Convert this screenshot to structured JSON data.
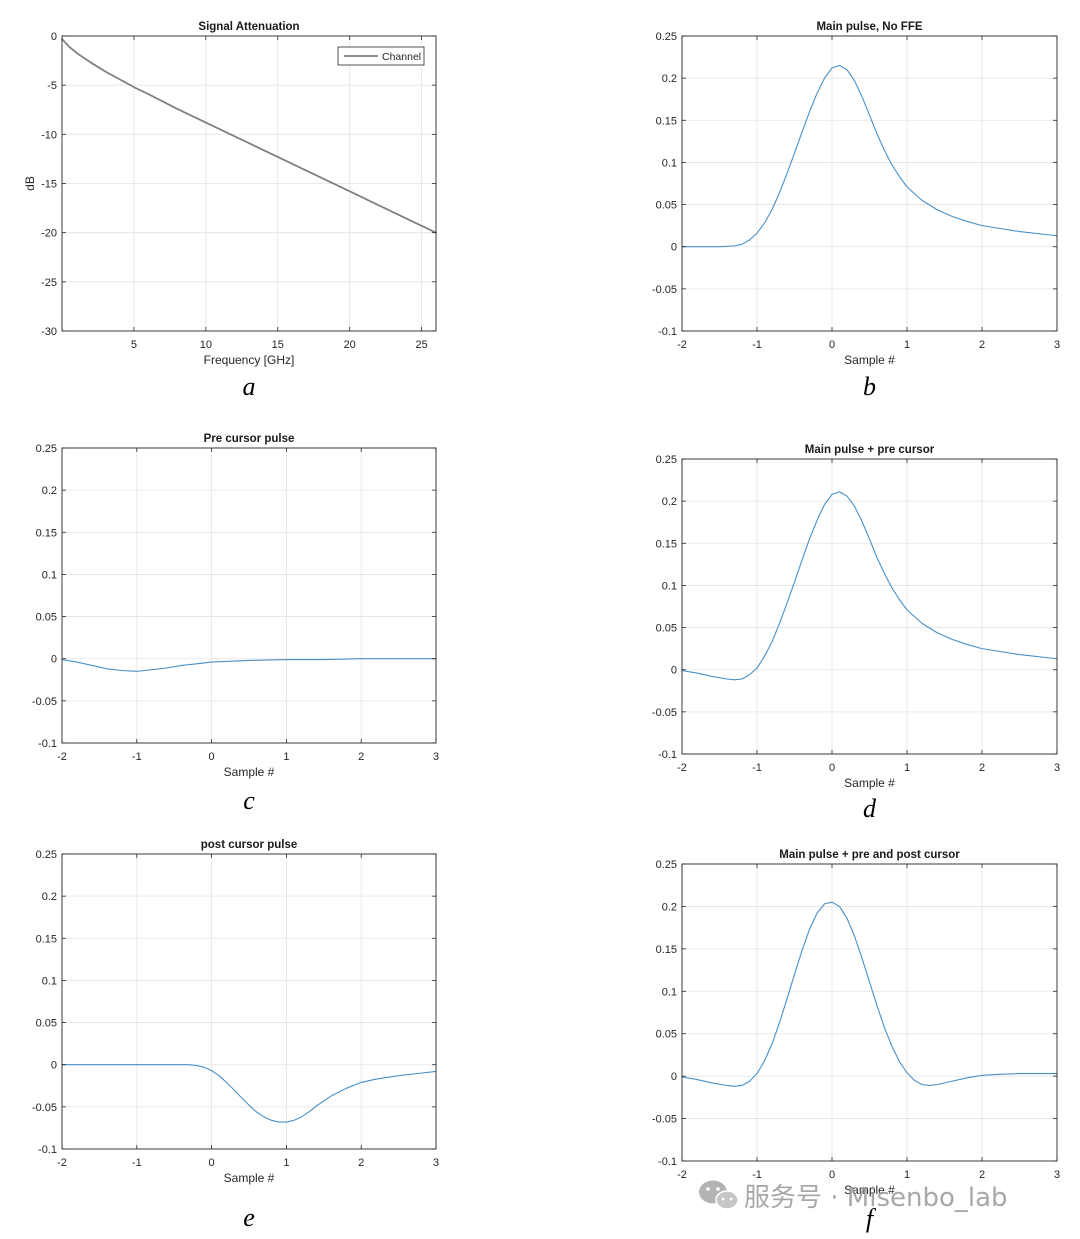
{
  "chart_data": [
    {
      "id": "a",
      "type": "line",
      "title": "Signal Attenuation",
      "xlabel": "Frequency [GHz]",
      "ylabel": "dB",
      "caption": "a",
      "xlim": [
        0,
        26
      ],
      "ylim": [
        -30,
        0
      ],
      "xticks": [
        5,
        10,
        15,
        20,
        25
      ],
      "yticks": [
        0,
        -5,
        -10,
        -15,
        -20,
        -25,
        -30
      ],
      "grid": true,
      "legend": "top-right",
      "series": [
        {
          "name": "Channel",
          "color": "#808080",
          "x": [
            0,
            0.5,
            1,
            1.5,
            2,
            3,
            4,
            5,
            6,
            8,
            10,
            12,
            14,
            16,
            18,
            20,
            22,
            24,
            26
          ],
          "y": [
            -0.3,
            -1.1,
            -1.7,
            -2.2,
            -2.7,
            -3.6,
            -4.4,
            -5.2,
            -5.9,
            -7.4,
            -8.8,
            -10.2,
            -11.6,
            -13.0,
            -14.4,
            -15.8,
            -17.2,
            -18.6,
            -20.0
          ]
        }
      ]
    },
    {
      "id": "b",
      "type": "line",
      "title": "Main pulse, No FFE",
      "xlabel": "Sample #",
      "ylabel": "",
      "caption": "b",
      "xlim": [
        -2,
        3
      ],
      "ylim": [
        -0.1,
        0.25
      ],
      "xticks": [
        -2,
        -1,
        0,
        1,
        2,
        3
      ],
      "yticks": [
        0.25,
        0.2,
        0.15,
        0.1,
        0.05,
        0,
        -0.05,
        -0.1
      ],
      "grid": true,
      "series": [
        {
          "color": "#4a90c8",
          "x": [
            -2,
            -1.5,
            -1.3,
            -1.2,
            -1.1,
            -1.0,
            -0.9,
            -0.8,
            -0.7,
            -0.6,
            -0.5,
            -0.4,
            -0.3,
            -0.2,
            -0.1,
            0,
            0.1,
            0.2,
            0.3,
            0.4,
            0.5,
            0.6,
            0.7,
            0.8,
            0.9,
            1.0,
            1.2,
            1.4,
            1.6,
            1.8,
            2.0,
            2.5,
            3.0
          ],
          "y": [
            0,
            0,
            0.001,
            0.003,
            0.008,
            0.016,
            0.028,
            0.044,
            0.064,
            0.087,
            0.111,
            0.136,
            0.16,
            0.182,
            0.2,
            0.212,
            0.215,
            0.21,
            0.197,
            0.178,
            0.156,
            0.134,
            0.114,
            0.097,
            0.083,
            0.071,
            0.055,
            0.044,
            0.036,
            0.03,
            0.025,
            0.018,
            0.013
          ]
        }
      ]
    },
    {
      "id": "c",
      "type": "line",
      "title": "Pre cursor pulse",
      "xlabel": "Sample #",
      "ylabel": "",
      "caption": "c",
      "xlim": [
        -2,
        3
      ],
      "ylim": [
        -0.1,
        0.25
      ],
      "xticks": [
        -2,
        -1,
        0,
        1,
        2,
        3
      ],
      "yticks": [
        0.25,
        0.2,
        0.15,
        0.1,
        0.05,
        0,
        -0.05,
        -0.1
      ],
      "grid": true,
      "series": [
        {
          "color": "#4a90c8",
          "x": [
            -2,
            -1.8,
            -1.6,
            -1.4,
            -1.2,
            -1.0,
            -0.8,
            -0.6,
            -0.4,
            -0.2,
            0,
            0.5,
            1.0,
            1.5,
            2.0,
            2.5,
            3.0
          ],
          "y": [
            -0.001,
            -0.004,
            -0.008,
            -0.012,
            -0.014,
            -0.015,
            -0.013,
            -0.011,
            -0.008,
            -0.006,
            -0.004,
            -0.002,
            -0.001,
            -0.001,
            0,
            0,
            0
          ]
        }
      ]
    },
    {
      "id": "d",
      "type": "line",
      "title": "Main pulse + pre cursor",
      "xlabel": "Sample #",
      "ylabel": "",
      "caption": "d",
      "xlim": [
        -2,
        3
      ],
      "ylim": [
        -0.1,
        0.25
      ],
      "xticks": [
        -2,
        -1,
        0,
        1,
        2,
        3
      ],
      "yticks": [
        0.25,
        0.2,
        0.15,
        0.1,
        0.05,
        0,
        -0.05,
        -0.1
      ],
      "grid": true,
      "series": [
        {
          "color": "#4a90c8",
          "x": [
            -2,
            -1.8,
            -1.6,
            -1.4,
            -1.3,
            -1.2,
            -1.1,
            -1.0,
            -0.9,
            -0.8,
            -0.7,
            -0.6,
            -0.5,
            -0.4,
            -0.3,
            -0.2,
            -0.1,
            0,
            0.1,
            0.2,
            0.3,
            0.4,
            0.5,
            0.6,
            0.7,
            0.8,
            0.9,
            1.0,
            1.2,
            1.4,
            1.6,
            1.8,
            2.0,
            2.5,
            3.0
          ],
          "y": [
            -0.001,
            -0.004,
            -0.008,
            -0.011,
            -0.012,
            -0.011,
            -0.006,
            0.002,
            0.016,
            0.033,
            0.055,
            0.079,
            0.104,
            0.13,
            0.155,
            0.177,
            0.196,
            0.208,
            0.211,
            0.206,
            0.194,
            0.176,
            0.155,
            0.133,
            0.114,
            0.097,
            0.083,
            0.071,
            0.055,
            0.044,
            0.036,
            0.03,
            0.025,
            0.018,
            0.013
          ]
        }
      ]
    },
    {
      "id": "e",
      "type": "line",
      "title": "post cursor pulse",
      "xlabel": "Sample #",
      "ylabel": "",
      "caption": "e",
      "xlim": [
        -2,
        3
      ],
      "ylim": [
        -0.1,
        0.25
      ],
      "xticks": [
        -2,
        -1,
        0,
        1,
        2,
        3
      ],
      "yticks": [
        0.25,
        0.2,
        0.15,
        0.1,
        0.05,
        0,
        -0.05,
        -0.1
      ],
      "grid": true,
      "series": [
        {
          "color": "#4a90c8",
          "x": [
            -2,
            -1.0,
            -0.5,
            -0.3,
            -0.2,
            -0.1,
            0,
            0.1,
            0.2,
            0.3,
            0.4,
            0.5,
            0.6,
            0.7,
            0.8,
            0.9,
            1.0,
            1.1,
            1.2,
            1.3,
            1.4,
            1.5,
            1.6,
            1.8,
            2.0,
            2.2,
            2.5,
            2.8,
            3.0
          ],
          "y": [
            0,
            0,
            0,
            0,
            -0.001,
            -0.003,
            -0.007,
            -0.013,
            -0.021,
            -0.03,
            -0.039,
            -0.048,
            -0.056,
            -0.062,
            -0.066,
            -0.068,
            -0.068,
            -0.066,
            -0.062,
            -0.056,
            -0.049,
            -0.043,
            -0.037,
            -0.028,
            -0.021,
            -0.017,
            -0.013,
            -0.01,
            -0.008
          ]
        }
      ]
    },
    {
      "id": "f",
      "type": "line",
      "title": "Main pulse + pre and post cursor",
      "xlabel": "Sample #",
      "ylabel": "",
      "caption": "f",
      "xlim": [
        -2,
        3
      ],
      "ylim": [
        -0.1,
        0.25
      ],
      "xticks": [
        -2,
        -1,
        0,
        1,
        2,
        3
      ],
      "yticks": [
        0.25,
        0.2,
        0.15,
        0.1,
        0.05,
        0,
        -0.05,
        -0.1
      ],
      "grid": true,
      "series": [
        {
          "color": "#4a90c8",
          "x": [
            -2,
            -1.8,
            -1.6,
            -1.4,
            -1.3,
            -1.2,
            -1.1,
            -1.0,
            -0.9,
            -0.8,
            -0.7,
            -0.6,
            -0.5,
            -0.4,
            -0.3,
            -0.2,
            -0.1,
            0,
            0.1,
            0.2,
            0.3,
            0.4,
            0.5,
            0.6,
            0.7,
            0.8,
            0.9,
            1.0,
            1.1,
            1.2,
            1.3,
            1.4,
            1.6,
            1.8,
            2.0,
            2.2,
            2.5,
            3.0
          ],
          "y": [
            -0.001,
            -0.004,
            -0.008,
            -0.011,
            -0.012,
            -0.011,
            -0.006,
            0.003,
            0.018,
            0.038,
            0.063,
            0.091,
            0.12,
            0.148,
            0.173,
            0.192,
            0.203,
            0.205,
            0.2,
            0.186,
            0.165,
            0.139,
            0.111,
            0.083,
            0.057,
            0.035,
            0.017,
            0.004,
            -0.005,
            -0.01,
            -0.011,
            -0.01,
            -0.006,
            -0.002,
            0.001,
            0.002,
            0.003,
            0.003
          ]
        }
      ]
    }
  ],
  "watermark": {
    "icon": "wechat-icon",
    "text": "服务号 · Misenbo_lab"
  }
}
